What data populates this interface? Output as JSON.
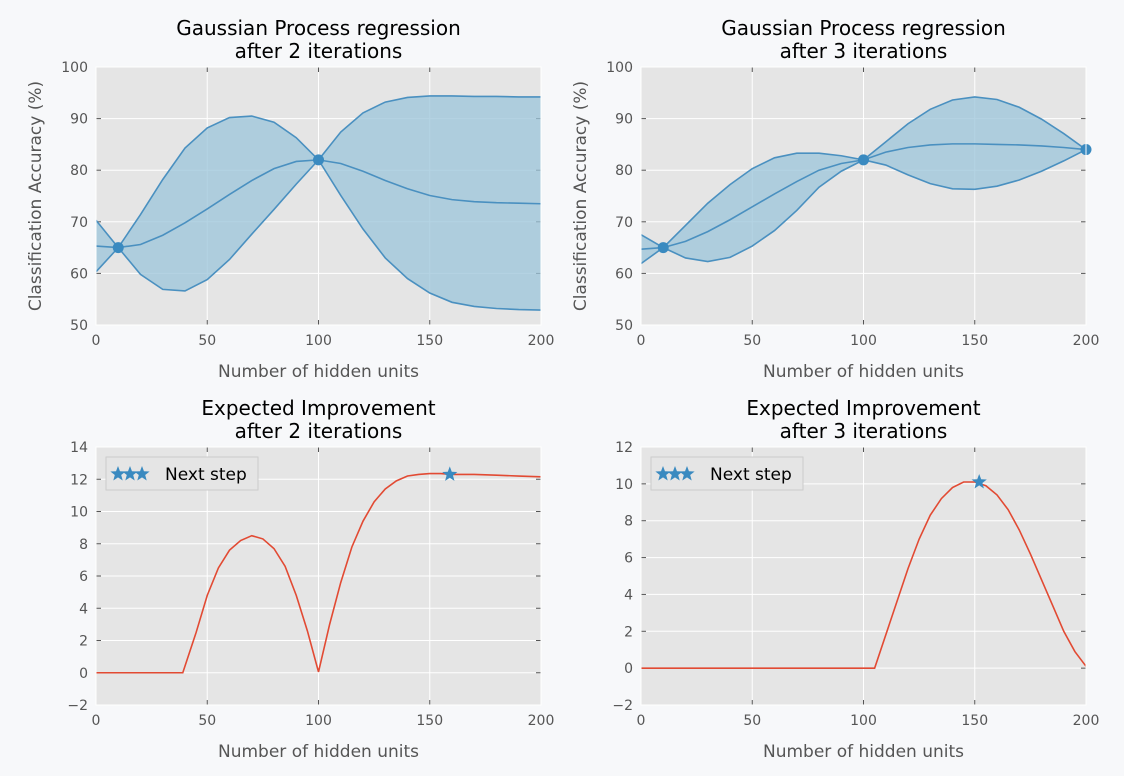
{
  "chart_data": [
    {
      "type": "area",
      "title": [
        "Gaussian Process regression",
        "after 2 iterations"
      ],
      "xlabel": "Number of hidden units",
      "ylabel": "Classification Accuracy (%)",
      "xlim": [
        0,
        200
      ],
      "ylim": [
        50,
        100
      ],
      "xticks": [
        0,
        50,
        100,
        150,
        200
      ],
      "yticks": [
        50,
        60,
        70,
        80,
        90,
        100
      ],
      "grid": true,
      "colors": {
        "line": "#4a90c0",
        "fill": "#9bc4da",
        "point": "#3a8ac0"
      },
      "series": [
        {
          "role": "mean",
          "x": [
            0,
            10,
            20,
            30,
            40,
            50,
            60,
            70,
            80,
            90,
            100,
            110,
            120,
            130,
            140,
            150,
            160,
            170,
            180,
            190,
            200
          ],
          "y": [
            65.3,
            65.0,
            65.6,
            67.4,
            69.8,
            72.5,
            75.3,
            78.0,
            80.3,
            81.7,
            82.0,
            81.3,
            79.8,
            78.0,
            76.4,
            75.1,
            74.3,
            73.9,
            73.7,
            73.6,
            73.5
          ]
        },
        {
          "role": "upper",
          "x": [
            0,
            10,
            20,
            30,
            40,
            50,
            60,
            70,
            80,
            90,
            100,
            110,
            120,
            130,
            140,
            150,
            160,
            170,
            180,
            190,
            200
          ],
          "y": [
            70.3,
            65.0,
            71.4,
            78.2,
            84.3,
            88.2,
            90.2,
            90.5,
            89.3,
            86.3,
            82.0,
            87.4,
            91.1,
            93.2,
            94.1,
            94.4,
            94.4,
            94.3,
            94.3,
            94.2,
            94.2
          ]
        },
        {
          "role": "lower",
          "x": [
            0,
            10,
            20,
            30,
            40,
            50,
            60,
            70,
            80,
            90,
            100,
            110,
            120,
            130,
            140,
            150,
            160,
            170,
            180,
            190,
            200
          ],
          "y": [
            60.3,
            65.0,
            59.8,
            56.9,
            56.6,
            58.8,
            62.7,
            67.6,
            72.4,
            77.3,
            82.0,
            75.1,
            68.6,
            63.0,
            59.0,
            56.2,
            54.4,
            53.6,
            53.2,
            53.0,
            52.9
          ]
        },
        {
          "role": "observations",
          "x": [
            10,
            100
          ],
          "y": [
            65,
            82
          ]
        }
      ]
    },
    {
      "type": "area",
      "title": [
        "Gaussian Process regression",
        "after 3 iterations"
      ],
      "xlabel": "Number of hidden units",
      "ylabel": "Classification Accuracy (%)",
      "xlim": [
        0,
        200
      ],
      "ylim": [
        50,
        100
      ],
      "xticks": [
        0,
        50,
        100,
        150,
        200
      ],
      "yticks": [
        50,
        60,
        70,
        80,
        90,
        100
      ],
      "grid": true,
      "colors": {
        "line": "#4a90c0",
        "fill": "#9bc4da",
        "point": "#3a8ac0"
      },
      "series": [
        {
          "role": "mean",
          "x": [
            0,
            10,
            20,
            30,
            40,
            50,
            60,
            70,
            80,
            90,
            100,
            110,
            120,
            130,
            140,
            150,
            160,
            170,
            180,
            190,
            200
          ],
          "y": [
            64.7,
            65.0,
            66.2,
            68.1,
            70.4,
            72.9,
            75.4,
            77.8,
            80.0,
            81.3,
            82.0,
            83.5,
            84.4,
            84.9,
            85.1,
            85.1,
            85.0,
            84.9,
            84.7,
            84.4,
            84.0
          ]
        },
        {
          "role": "upper",
          "x": [
            0,
            10,
            20,
            30,
            40,
            50,
            60,
            70,
            80,
            90,
            100,
            110,
            120,
            130,
            140,
            150,
            160,
            170,
            180,
            190,
            200
          ],
          "y": [
            67.5,
            65.0,
            69.3,
            73.6,
            77.2,
            80.3,
            82.4,
            83.3,
            83.3,
            82.8,
            82.0,
            85.5,
            89.0,
            91.8,
            93.6,
            94.2,
            93.7,
            92.2,
            89.9,
            87.1,
            84.0
          ]
        },
        {
          "role": "lower",
          "x": [
            0,
            10,
            20,
            30,
            40,
            50,
            60,
            70,
            80,
            90,
            100,
            110,
            120,
            130,
            140,
            150,
            160,
            170,
            180,
            190,
            200
          ],
          "y": [
            61.9,
            65.0,
            63.0,
            62.3,
            63.1,
            65.3,
            68.3,
            72.2,
            76.7,
            79.8,
            82.0,
            81.0,
            79.1,
            77.4,
            76.4,
            76.3,
            76.9,
            78.1,
            79.8,
            81.8,
            84.0
          ]
        },
        {
          "role": "observations",
          "x": [
            10,
            100,
            200
          ],
          "y": [
            65,
            82,
            84
          ]
        }
      ]
    },
    {
      "type": "line",
      "title": [
        "Expected Improvement",
        "after 2 iterations"
      ],
      "xlabel": "Number of hidden units",
      "ylabel": "",
      "xlim": [
        0,
        200
      ],
      "ylim": [
        -2,
        14
      ],
      "xticks": [
        0,
        50,
        100,
        150,
        200
      ],
      "yticks": [
        -2,
        0,
        2,
        4,
        6,
        8,
        10,
        12,
        14
      ],
      "ytick_labels": [
        "−2",
        "0",
        "2",
        "4",
        "6",
        "8",
        "10",
        "12",
        "14"
      ],
      "grid": true,
      "legend": {
        "placement": "top-left",
        "label": "Next step",
        "marker": "★"
      },
      "colors": {
        "line": "#e24a33",
        "marker": "#3a8ac0"
      },
      "series": [
        {
          "role": "ei",
          "x": [
            0,
            39,
            45,
            50,
            55,
            60,
            65,
            70,
            75,
            80,
            85,
            90,
            95,
            100,
            105,
            110,
            115,
            120,
            125,
            130,
            135,
            140,
            145,
            150,
            155,
            160,
            170,
            180,
            190,
            200
          ],
          "y": [
            0,
            0,
            2.5,
            4.8,
            6.5,
            7.6,
            8.2,
            8.5,
            8.3,
            7.7,
            6.6,
            4.8,
            2.6,
            0.05,
            3.0,
            5.6,
            7.8,
            9.4,
            10.6,
            11.4,
            11.9,
            12.2,
            12.3,
            12.35,
            12.35,
            12.3,
            12.3,
            12.25,
            12.2,
            12.15
          ]
        },
        {
          "role": "next_step",
          "x": [
            159
          ],
          "y": [
            12.3
          ]
        }
      ]
    },
    {
      "type": "line",
      "title": [
        "Expected Improvement",
        "after 3 iterations"
      ],
      "xlabel": "Number of hidden units",
      "ylabel": "",
      "xlim": [
        0,
        200
      ],
      "ylim": [
        -2,
        12
      ],
      "xticks": [
        0,
        50,
        100,
        150,
        200
      ],
      "yticks": [
        -2,
        0,
        2,
        4,
        6,
        8,
        10,
        12
      ],
      "ytick_labels": [
        "−2",
        "0",
        "2",
        "4",
        "6",
        "8",
        "10",
        "12"
      ],
      "grid": true,
      "legend": {
        "placement": "top-left",
        "label": "Next step",
        "marker": "★"
      },
      "colors": {
        "line": "#e24a33",
        "marker": "#3a8ac0"
      },
      "series": [
        {
          "role": "ei",
          "x": [
            0,
            105,
            110,
            115,
            120,
            125,
            130,
            135,
            140,
            145,
            150,
            155,
            160,
            165,
            170,
            175,
            180,
            185,
            190,
            195,
            200
          ],
          "y": [
            0,
            0,
            1.8,
            3.6,
            5.4,
            7.0,
            8.3,
            9.2,
            9.8,
            10.1,
            10.1,
            9.9,
            9.4,
            8.6,
            7.5,
            6.2,
            4.8,
            3.4,
            2.0,
            0.9,
            0.1
          ]
        },
        {
          "role": "next_step",
          "x": [
            152
          ],
          "y": [
            10.1
          ]
        }
      ]
    }
  ]
}
